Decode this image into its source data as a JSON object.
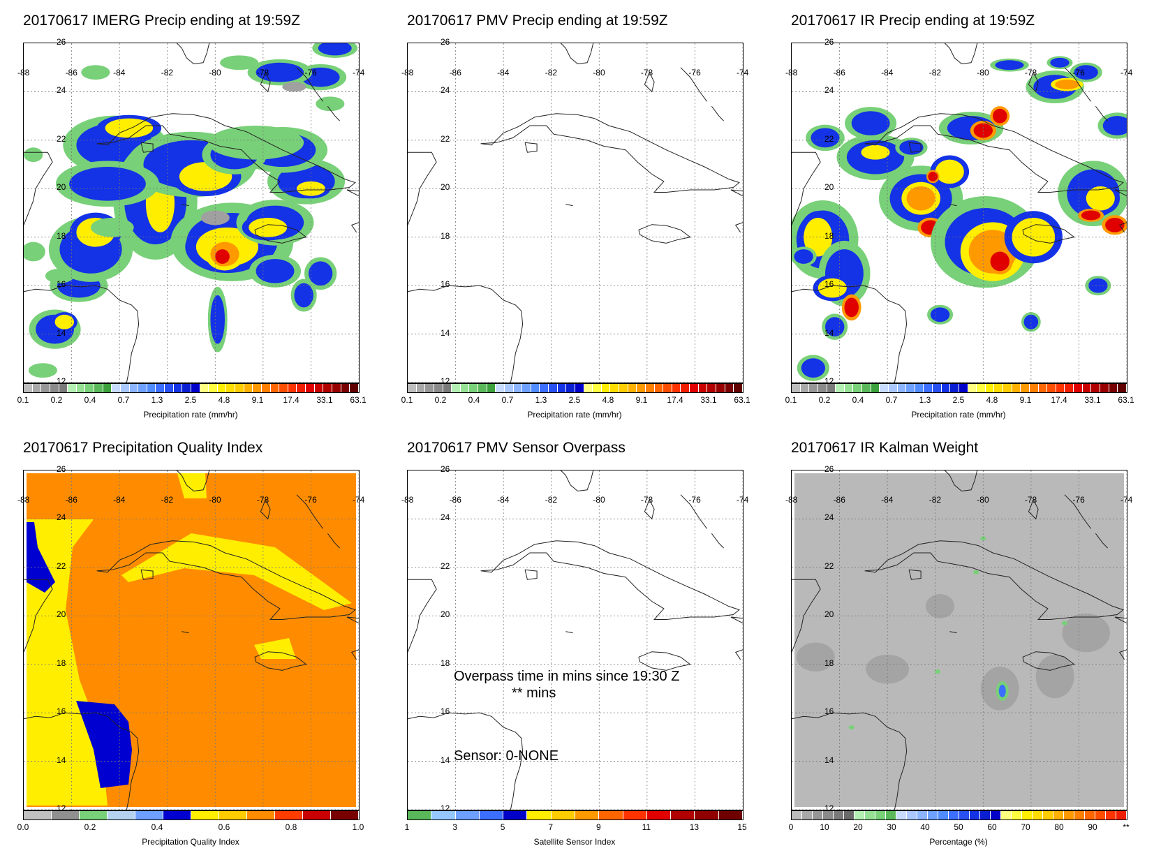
{
  "panels": [
    {
      "id": "imerg",
      "title": "20170617 IMERG Precip ending at 19:59Z",
      "scale": "precip",
      "cbar_ticks": [
        "0.1",
        "0.2",
        "0.4",
        "0.7",
        "1.3",
        "2.5",
        "4.8",
        "9.1",
        "17.4",
        "33.1",
        "63.1"
      ],
      "cbar_label": "Precipitation rate (mm/hr)"
    },
    {
      "id": "pmv",
      "title": "20170617 PMV Precip ending at 19:59Z",
      "scale": "precip",
      "cbar_ticks": [
        "0.1",
        "0.2",
        "0.4",
        "0.7",
        "1.3",
        "2.5",
        "4.8",
        "9.1",
        "17.4",
        "33.1",
        "63.1"
      ],
      "cbar_label": "Precipitation rate (mm/hr)"
    },
    {
      "id": "ir",
      "title": "20170617 IR Precip ending at 19:59Z",
      "scale": "precip",
      "cbar_ticks": [
        "0.1",
        "0.2",
        "0.4",
        "0.7",
        "1.3",
        "2.5",
        "4.8",
        "9.1",
        "17.4",
        "33.1",
        "63.1"
      ],
      "cbar_label": "Precipitation rate (mm/hr)"
    },
    {
      "id": "pqi",
      "title": "20170617 Precipitation Quality Index",
      "scale": "quality",
      "cbar_ticks": [
        "0.0",
        "0.2",
        "0.4",
        "0.6",
        "0.8",
        "1.0"
      ],
      "cbar_label": "Precipitation Quality Index"
    },
    {
      "id": "overpass",
      "title": "20170617 PMV Sensor Overpass",
      "scale": "sensor",
      "cbar_ticks": [
        "1",
        "3",
        "5",
        "7",
        "9",
        "11",
        "13",
        "15"
      ],
      "cbar_label": "Satellite Sensor Index",
      "overpass_line1": "Overpass time in mins since 19:30 Z",
      "overpass_line2": "** mins",
      "sensor_line": "Sensor:   0-NONE"
    },
    {
      "id": "kalman",
      "title": "20170617 IR Kalman Weight",
      "scale": "percent",
      "cbar_ticks": [
        "0",
        "10",
        "20",
        "30",
        "40",
        "50",
        "60",
        "70",
        "80",
        "90",
        "**"
      ],
      "cbar_label": "Percentage (%)"
    }
  ],
  "map_lon_labels": [
    "-88",
    "-86",
    "-84",
    "-82",
    "-80",
    "-78",
    "-76",
    "-74"
  ],
  "map_lat_labels": [
    "26",
    "24",
    "22",
    "20",
    "18",
    "16",
    "14",
    "12"
  ],
  "colors": {
    "precip_scale": [
      "#bdbdbd",
      "#a8a8a8",
      "#969696",
      "#8a8a8a",
      "#7a7a7a",
      "#b4f0b4",
      "#96e096",
      "#78d078",
      "#5ab85a",
      "#3ca03c",
      "#c8dcff",
      "#aac8ff",
      "#8cb4ff",
      "#6ea0ff",
      "#508cff",
      "#3c6eff",
      "#2850f0",
      "#1432e6",
      "#0a1ed2",
      "#0000c8",
      "#ffff80",
      "#ffff40",
      "#ffee00",
      "#ffdd00",
      "#ffcc00",
      "#ffb000",
      "#ff9900",
      "#ff8000",
      "#ff6600",
      "#ff4d00",
      "#ff3300",
      "#f01e00",
      "#e00000",
      "#c80000",
      "#b00000",
      "#960000",
      "#780000",
      "#600000"
    ],
    "quality_scale": [
      "#c0c0c0",
      "#909090",
      "#78d078",
      "#b4d2f0",
      "#6ea0ff",
      "#0000d0",
      "#ffee00",
      "#ffcc00",
      "#ff8c00",
      "#ff3c00",
      "#c80000",
      "#780000"
    ],
    "sensor_scale": [
      "#5ab85a",
      "#96c8ff",
      "#6ea0ff",
      "#3c6eff",
      "#0000c8",
      "#ffee00",
      "#ffcc00",
      "#ff9900",
      "#ff6600",
      "#ff3300",
      "#e00000",
      "#b00000",
      "#900000",
      "#700000"
    ],
    "percent_scale": [
      "#bdbdbd",
      "#a8a8a8",
      "#969696",
      "#8a8a8a",
      "#7a7a7a",
      "#6a6a6a",
      "#b4f0b4",
      "#96e096",
      "#78d078",
      "#5ab85a",
      "#c8dcff",
      "#aac8ff",
      "#8cb4ff",
      "#6ea0ff",
      "#508cff",
      "#3c6eff",
      "#2850f0",
      "#1432e6",
      "#0a1ed2",
      "#0000c8",
      "#ffff80",
      "#ffff40",
      "#ffee00",
      "#ffdd00",
      "#ffcc00",
      "#ffb000",
      "#ff9900",
      "#ff8000",
      "#ff6600",
      "#ff4d00",
      "#ff3300",
      "#f01e00"
    ],
    "pqi_orange": "#ff8c00",
    "pqi_yellow": "#ffee00",
    "pqi_blue": "#0000d0",
    "kalman_gray": "#b9b9b9"
  }
}
